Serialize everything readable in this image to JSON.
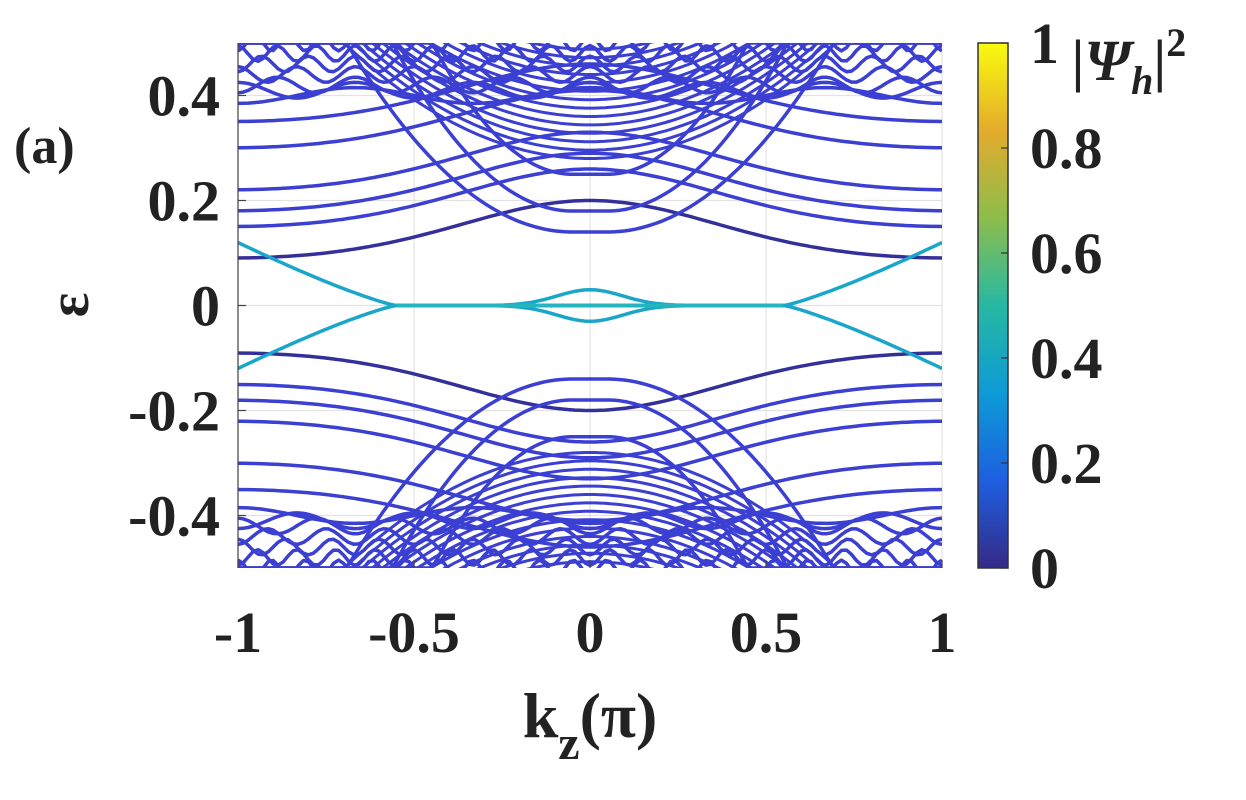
{
  "panel_label": "(a)",
  "chart_data": {
    "type": "line",
    "xlabel": "k",
    "xlabel_sub": "z",
    "xlabel_unit": "(π)",
    "ylabel": "ε",
    "xlim": [
      -1,
      1
    ],
    "ylim": [
      -0.5,
      0.5
    ],
    "xticks": [
      -1,
      -0.5,
      0,
      0.5,
      1
    ],
    "xtick_labels": [
      "-1",
      "-0.5",
      "0",
      "0.5",
      "1"
    ],
    "yticks": [
      -0.4,
      -0.2,
      0,
      0.2,
      0.4
    ],
    "ytick_labels": [
      "-0.4",
      "-0.2",
      "0",
      "0.2",
      "0.4"
    ],
    "grid": true,
    "band_edge_positive": [
      0.4,
      0.41,
      0.42,
      0.44,
      0.46,
      0.48,
      0.5
    ],
    "flat_band_levels": [
      0.11,
      0.17,
      0.2,
      0.24,
      0.32,
      0.37
    ],
    "central_band_levels": [
      0.14,
      0.18,
      0.25
    ],
    "zero_mode": {
      "x_range": [
        -0.55,
        0.55
      ],
      "hump_height": 0.03,
      "hump_halfwidth": 0.22
    },
    "colorbar": {
      "label": "|Ψ",
      "label_sub": "h",
      "label_sup": "2",
      "label_close": "|",
      "ticks": [
        0,
        0.2,
        0.4,
        0.6,
        0.8,
        1
      ],
      "tick_labels": [
        "0",
        "0.2",
        "0.4",
        "0.6",
        "0.8",
        "1"
      ],
      "range": [
        0,
        1
      ],
      "colors": [
        "#352a87",
        "#1e5fe0",
        "#0d9bd6",
        "#27b8a2",
        "#8dbd4c",
        "#e4ab2c",
        "#f9fb0e"
      ]
    },
    "line_color_bulk": "#3b3fd2",
    "line_color_dark": "#33309a",
    "line_color_zero": "#1aa6c8"
  }
}
